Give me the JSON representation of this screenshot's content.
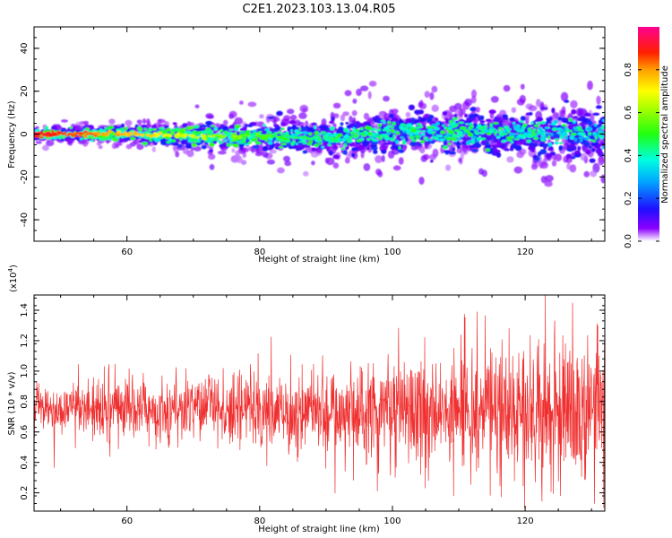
{
  "title": "C2E1.2023.103.13.04.R05",
  "chart_data": [
    {
      "type": "heatmap",
      "title": "C2E1.2023.103.13.04.R05",
      "xlabel": "Height of straight line (km)",
      "ylabel": "Frequency (Hz)",
      "xlim": [
        46,
        132
      ],
      "ylim": [
        -50,
        50
      ],
      "xticks": [
        60,
        80,
        100,
        120
      ],
      "yticks": [
        -40,
        -20,
        0,
        20,
        40
      ],
      "colorbar": {
        "label": "Normalized spectral amplitude",
        "range": [
          0.0,
          1.0
        ],
        "ticks": [
          0.0,
          0.2,
          0.4,
          0.6,
          0.8
        ],
        "colormap": "gist_ncar-like"
      },
      "trend": {
        "description": "bright ridge near 0 Hz, widening with height",
        "x": [
          46,
          60,
          70,
          80,
          90,
          100,
          110,
          120,
          132
        ],
        "center_hz": [
          0,
          0,
          -1,
          -1,
          -2,
          1,
          1,
          0,
          0
        ],
        "spread_hz": [
          2,
          3,
          4,
          5,
          6,
          7,
          8,
          8,
          9
        ]
      }
    },
    {
      "type": "line",
      "xlabel": "Height of straight line (km)",
      "ylabel": "SNR (10 * v/v)",
      "yscale_label": "(x10",
      "yscale_exp": "4",
      "yscale_close": ")",
      "xlim": [
        46,
        132
      ],
      "ylim": [
        0.08,
        1.5
      ],
      "xticks": [
        60,
        80,
        100,
        120
      ],
      "yticks": [
        0.2,
        0.4,
        0.6,
        0.8,
        1.0,
        1.2,
        1.4
      ],
      "series": [
        {
          "name": "SNR",
          "color": "#f03030",
          "description": "noisy signal centred near 0.75, variance increasing with height",
          "mean": 0.75,
          "min": 0.1,
          "max": 1.5
        }
      ]
    }
  ]
}
